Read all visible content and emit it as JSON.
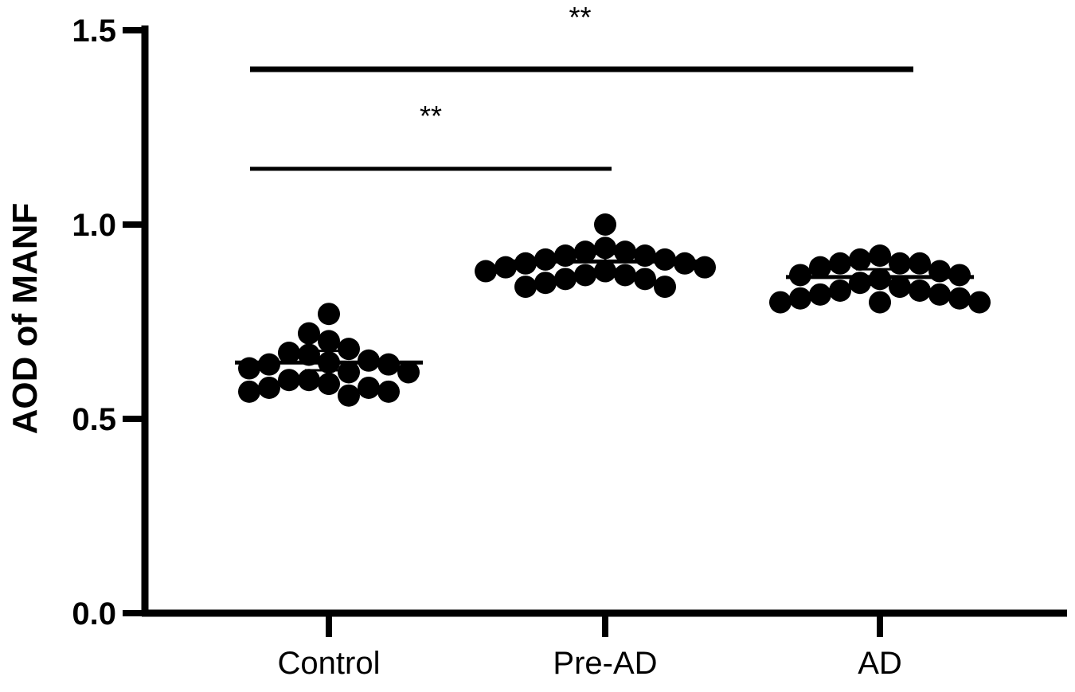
{
  "chart_data": {
    "type": "scatter",
    "title": "",
    "xlabel": "",
    "ylabel": "AOD of MANF",
    "ylim": [
      0,
      1.5
    ],
    "yticks": [
      0.0,
      0.5,
      1.0,
      1.5
    ],
    "ytick_labels": [
      "0.0",
      "0.5",
      "1.0",
      "1.5"
    ],
    "categories": [
      "Control",
      "Pre-AD",
      "AD"
    ],
    "grid": false,
    "legend": "none",
    "groups": [
      {
        "category": "Control",
        "mean": 0.645,
        "error_low": 0.625,
        "error_high": 0.675,
        "points": [
          0.77,
          0.72,
          0.7,
          0.68,
          0.67,
          0.665,
          0.65,
          0.645,
          0.64,
          0.64,
          0.63,
          0.62,
          0.62,
          0.6,
          0.6,
          0.59,
          0.58,
          0.58,
          0.57,
          0.57,
          0.56
        ]
      },
      {
        "category": "Pre-AD",
        "mean": 0.905,
        "error_low": 0.885,
        "error_high": 0.925,
        "points": [
          1.0,
          0.94,
          0.93,
          0.93,
          0.92,
          0.92,
          0.91,
          0.91,
          0.9,
          0.9,
          0.89,
          0.89,
          0.88,
          0.88,
          0.87,
          0.87,
          0.86,
          0.86,
          0.85,
          0.84,
          0.84
        ]
      },
      {
        "category": "AD",
        "mean": 0.865,
        "error_low": 0.845,
        "error_high": 0.885,
        "points": [
          0.92,
          0.91,
          0.9,
          0.9,
          0.9,
          0.89,
          0.88,
          0.87,
          0.87,
          0.86,
          0.85,
          0.84,
          0.83,
          0.83,
          0.82,
          0.82,
          0.81,
          0.81,
          0.8,
          0.8,
          0.8
        ]
      }
    ],
    "significance": [
      {
        "from": "Control",
        "to": "Pre-AD",
        "label": "**"
      },
      {
        "from": "Control",
        "to": "AD",
        "label": "**"
      }
    ],
    "colors": {
      "points": "#000000",
      "axis": "#000000"
    }
  }
}
